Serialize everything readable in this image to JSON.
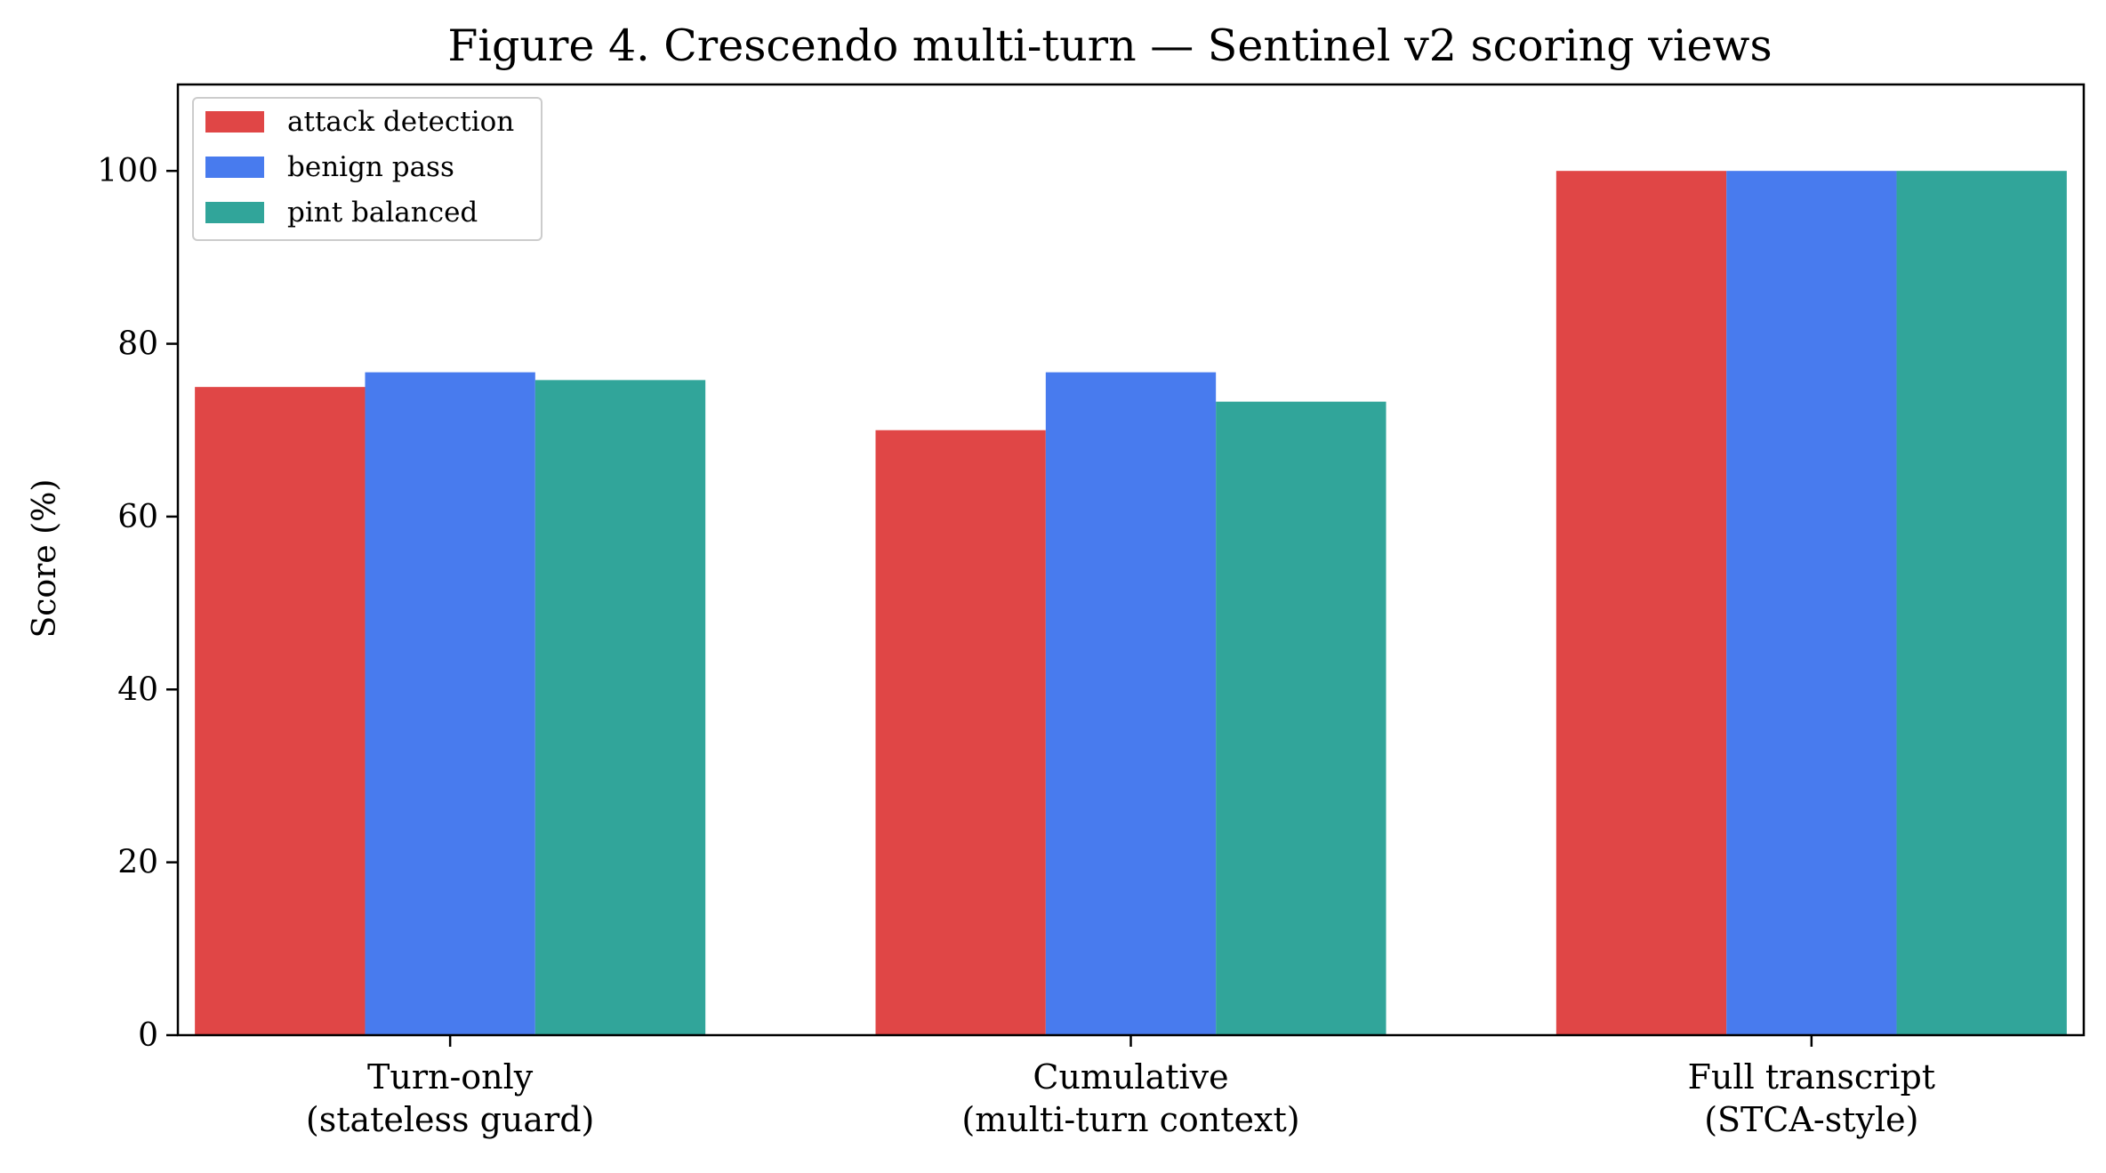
{
  "chart_data": {
    "type": "bar",
    "title": "Figure 4. Crescendo multi-turn — Sentinel v2 scoring views",
    "xlabel": "",
    "ylabel": "Score (%)",
    "ylim": [
      0,
      110
    ],
    "yticks": [
      0,
      20,
      40,
      60,
      80,
      100
    ],
    "grid": false,
    "legend_position": "top-left",
    "categories": [
      [
        "Turn-only",
        "(stateless guard)"
      ],
      [
        "Cumulative",
        "(multi-turn context)"
      ],
      [
        "Full transcript",
        "(STCA-style)"
      ]
    ],
    "series": [
      {
        "name": "attack detection",
        "color": "#e04646",
        "values": [
          75.0,
          70.0,
          100.0
        ]
      },
      {
        "name": "benign pass",
        "color": "#487bee",
        "values": [
          76.7,
          76.7,
          100.0
        ]
      },
      {
        "name": "pint balanced",
        "color": "#31a59a",
        "values": [
          75.8,
          73.3,
          100.0
        ]
      }
    ]
  }
}
